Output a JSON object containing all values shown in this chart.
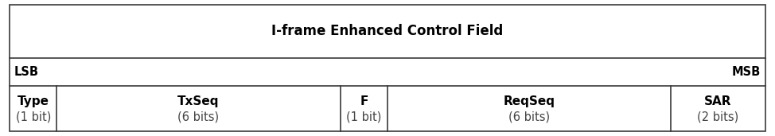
{
  "title": "I-frame Enhanced Control Field",
  "lsb_label": "LSB",
  "msb_label": "MSB",
  "columns": [
    {
      "name": "Type",
      "bits": "(1 bit)"
    },
    {
      "name": "TxSeq",
      "bits": "(6 bits)"
    },
    {
      "name": "F",
      "bits": "(1 bit)"
    },
    {
      "name": "ReqSeq",
      "bits": "(6 bits)"
    },
    {
      "name": "SAR",
      "bits": "(2 bits)"
    }
  ],
  "col_widths": [
    1,
    6,
    1,
    6,
    2
  ],
  "bg_color": "#ffffff",
  "border_color": "#3a3a3a",
  "text_color": "#000000",
  "bits_color": "#444444",
  "title_fontsize": 12,
  "label_fontsize": 10.5,
  "cell_name_fontsize": 11,
  "bits_fontsize": 10.5,
  "fig_width": 9.74,
  "fig_height": 1.71,
  "dpi": 100
}
